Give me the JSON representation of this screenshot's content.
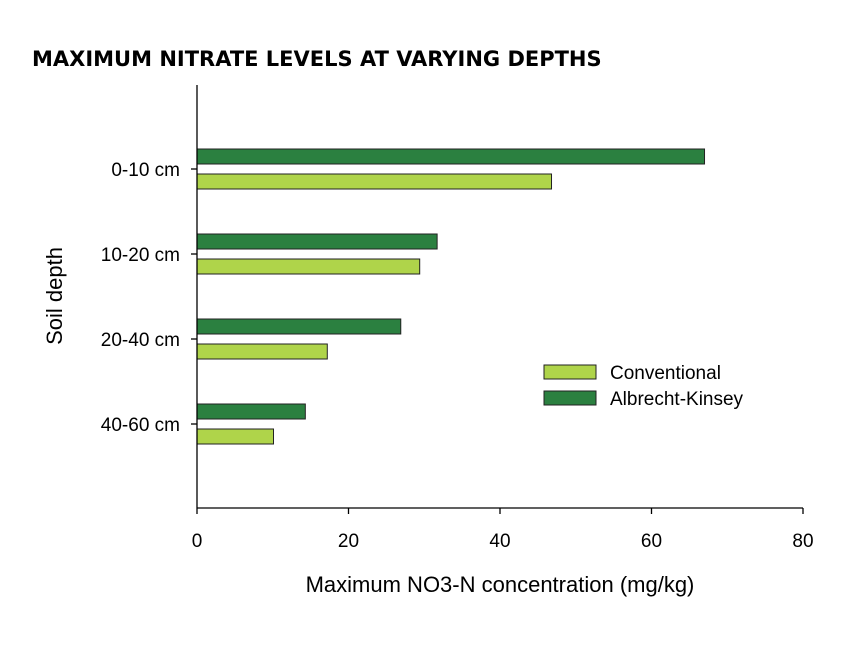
{
  "chart_data": {
    "type": "bar",
    "orientation": "horizontal",
    "title": "MAXIMUM NITRATE LEVELS AT VARYING DEPTHS",
    "xlabel": "Maximum NO3-N concentration (mg/kg)",
    "ylabel": "Soil depth",
    "categories": [
      "0-10 cm",
      "10-20 cm",
      "20-40 cm",
      "40-60 cm"
    ],
    "series": [
      {
        "name": "Albrecht-Kinsey",
        "color": "#2b8040",
        "values": [
          67,
          31.7,
          26.9,
          14.3
        ]
      },
      {
        "name": "Conventional",
        "color": "#afd44a",
        "values": [
          46.8,
          29.4,
          17.2,
          10.1
        ]
      }
    ],
    "xlim": [
      0,
      80
    ],
    "xticks": [
      "0",
      "20",
      "40",
      "60",
      "80"
    ],
    "grid": false,
    "legend": {
      "placement": "right-center",
      "entries": [
        "Conventional",
        "Albrecht-Kinsey"
      ]
    }
  }
}
